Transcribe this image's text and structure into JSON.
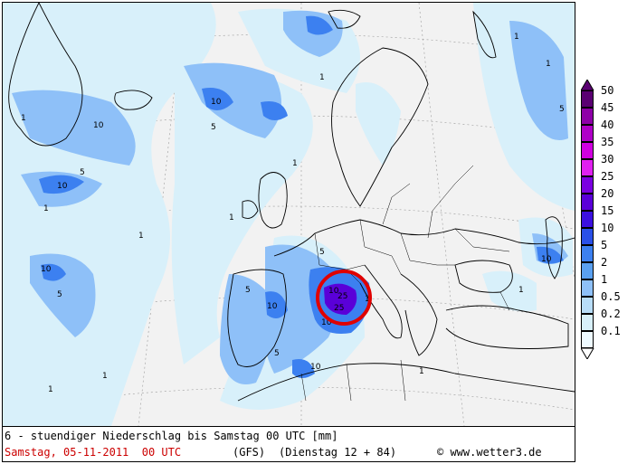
{
  "footer": {
    "title": "6 - stuendiger Niederschlag bis Samstag 00 UTC [mm]",
    "date": "Samstag, 05-11-2011  00 UTC",
    "model": "(GFS)",
    "run": "(Dienstag 12 + 84)",
    "copyright": "© www.wetter3.de"
  },
  "legend": {
    "labels": [
      "50",
      "45",
      "40",
      "35",
      "30",
      "25",
      "20",
      "15",
      "10",
      "5",
      "2",
      "1",
      "0.5",
      "0.2",
      "0.1"
    ],
    "colors": [
      "#5a0072",
      "#8e00a8",
      "#b000c8",
      "#d000e0",
      "#e020f0",
      "#7b00e0",
      "#5a00d8",
      "#3c10e0",
      "#2a50e8",
      "#3c80f0",
      "#5aa0f0",
      "#8ec0f8",
      "#b8ddf8",
      "#d8f0fa",
      "#eefaff"
    ]
  },
  "map_labels": {
    "contour_1": "1",
    "contour_5": "5",
    "contour_10": "10",
    "contour_25": "25"
  },
  "colors": {
    "land": "#f2f2f2",
    "precip_light": "#d8f0fa",
    "precip_mid": "#8ec0f8",
    "precip_heavy": "#3c80f0",
    "precip_max": "#5a00d8",
    "highlight_circle": "#e00000"
  }
}
